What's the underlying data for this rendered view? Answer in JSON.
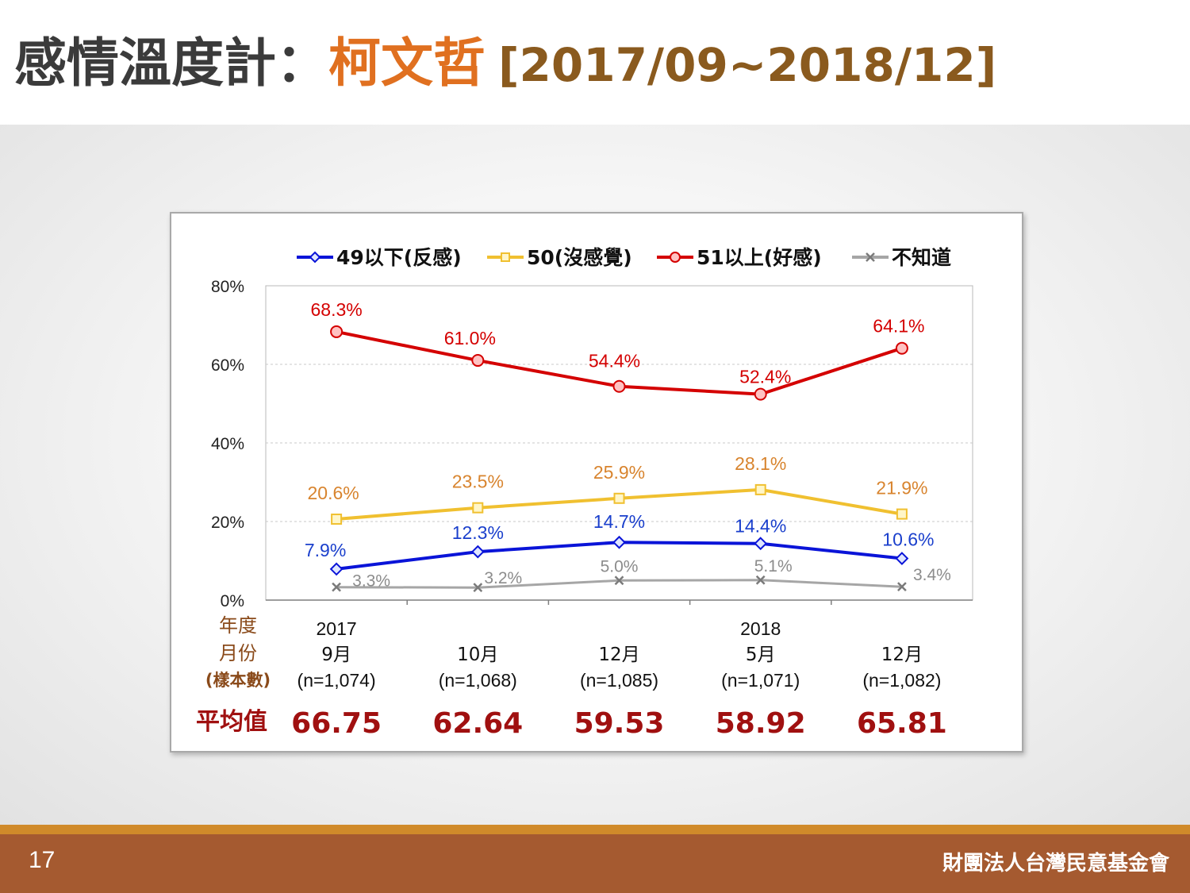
{
  "title": {
    "main": "感情溫度計：",
    "subject": "柯文哲",
    "period": "[2017/09~2018/12]"
  },
  "colors": {
    "title_text": "#3b3b3b",
    "title_accent": "#e07020",
    "title_period": "#8a5a1e",
    "footer": "#a55a30",
    "footer_stripe": "#d08a2a"
  },
  "chart_data": {
    "type": "line",
    "categories": [
      "9月",
      "10月",
      "12月",
      "5月",
      "12月"
    ],
    "years": [
      "2017",
      "",
      "",
      "2018",
      ""
    ],
    "samples": [
      "(n=1,074)",
      "(n=1,068)",
      "(n=1,085)",
      "(n=1,071)",
      "(n=1,082)"
    ],
    "series": [
      {
        "name": "49以下(反感)",
        "values": [
          7.9,
          12.3,
          14.7,
          14.4,
          10.6
        ],
        "labels": [
          "7.9%",
          "12.3%",
          "14.7%",
          "14.4%",
          "10.6%"
        ],
        "color": "#0a14d8",
        "label_color": "#1a3fcc",
        "marker": "diamond"
      },
      {
        "name": "50(沒感覺)",
        "values": [
          20.6,
          23.5,
          25.9,
          28.1,
          21.9
        ],
        "labels": [
          "20.6%",
          "23.5%",
          "25.9%",
          "28.1%",
          "21.9%"
        ],
        "color": "#f0c030",
        "label_color": "#d8842e",
        "marker": "square"
      },
      {
        "name": "51以上(好感)",
        "values": [
          68.3,
          61.0,
          54.4,
          52.4,
          64.1
        ],
        "labels": [
          "68.3%",
          "61.0%",
          "54.4%",
          "52.4%",
          "64.1%"
        ],
        "color": "#d40000",
        "label_color": "#d40000",
        "marker": "circle"
      },
      {
        "name": "不知道",
        "values": [
          3.3,
          3.2,
          5.0,
          5.1,
          3.4
        ],
        "labels": [
          "3.3%",
          "3.2%",
          "5.0%",
          "5.1%",
          "3.4%"
        ],
        "color": "#a6a6a6",
        "label_color": "#8c8c8c",
        "marker": "x"
      }
    ],
    "ylim": [
      0,
      80
    ],
    "yticks": [
      0,
      20,
      40,
      60,
      80
    ],
    "ytick_labels": [
      "0%",
      "20%",
      "40%",
      "60%",
      "80%"
    ],
    "grid": true,
    "legend_position": "top",
    "row_labels": {
      "year": "年度",
      "month": "月份",
      "sample": "(樣本數)",
      "average": "平均值"
    },
    "row_label_color": "#8a4a1a",
    "averages": [
      "66.75",
      "62.64",
      "59.53",
      "58.92",
      "65.81"
    ],
    "average_color": "#a01010"
  },
  "footer": {
    "page_number": "17",
    "organization": "財團法人台灣民意基金會"
  }
}
